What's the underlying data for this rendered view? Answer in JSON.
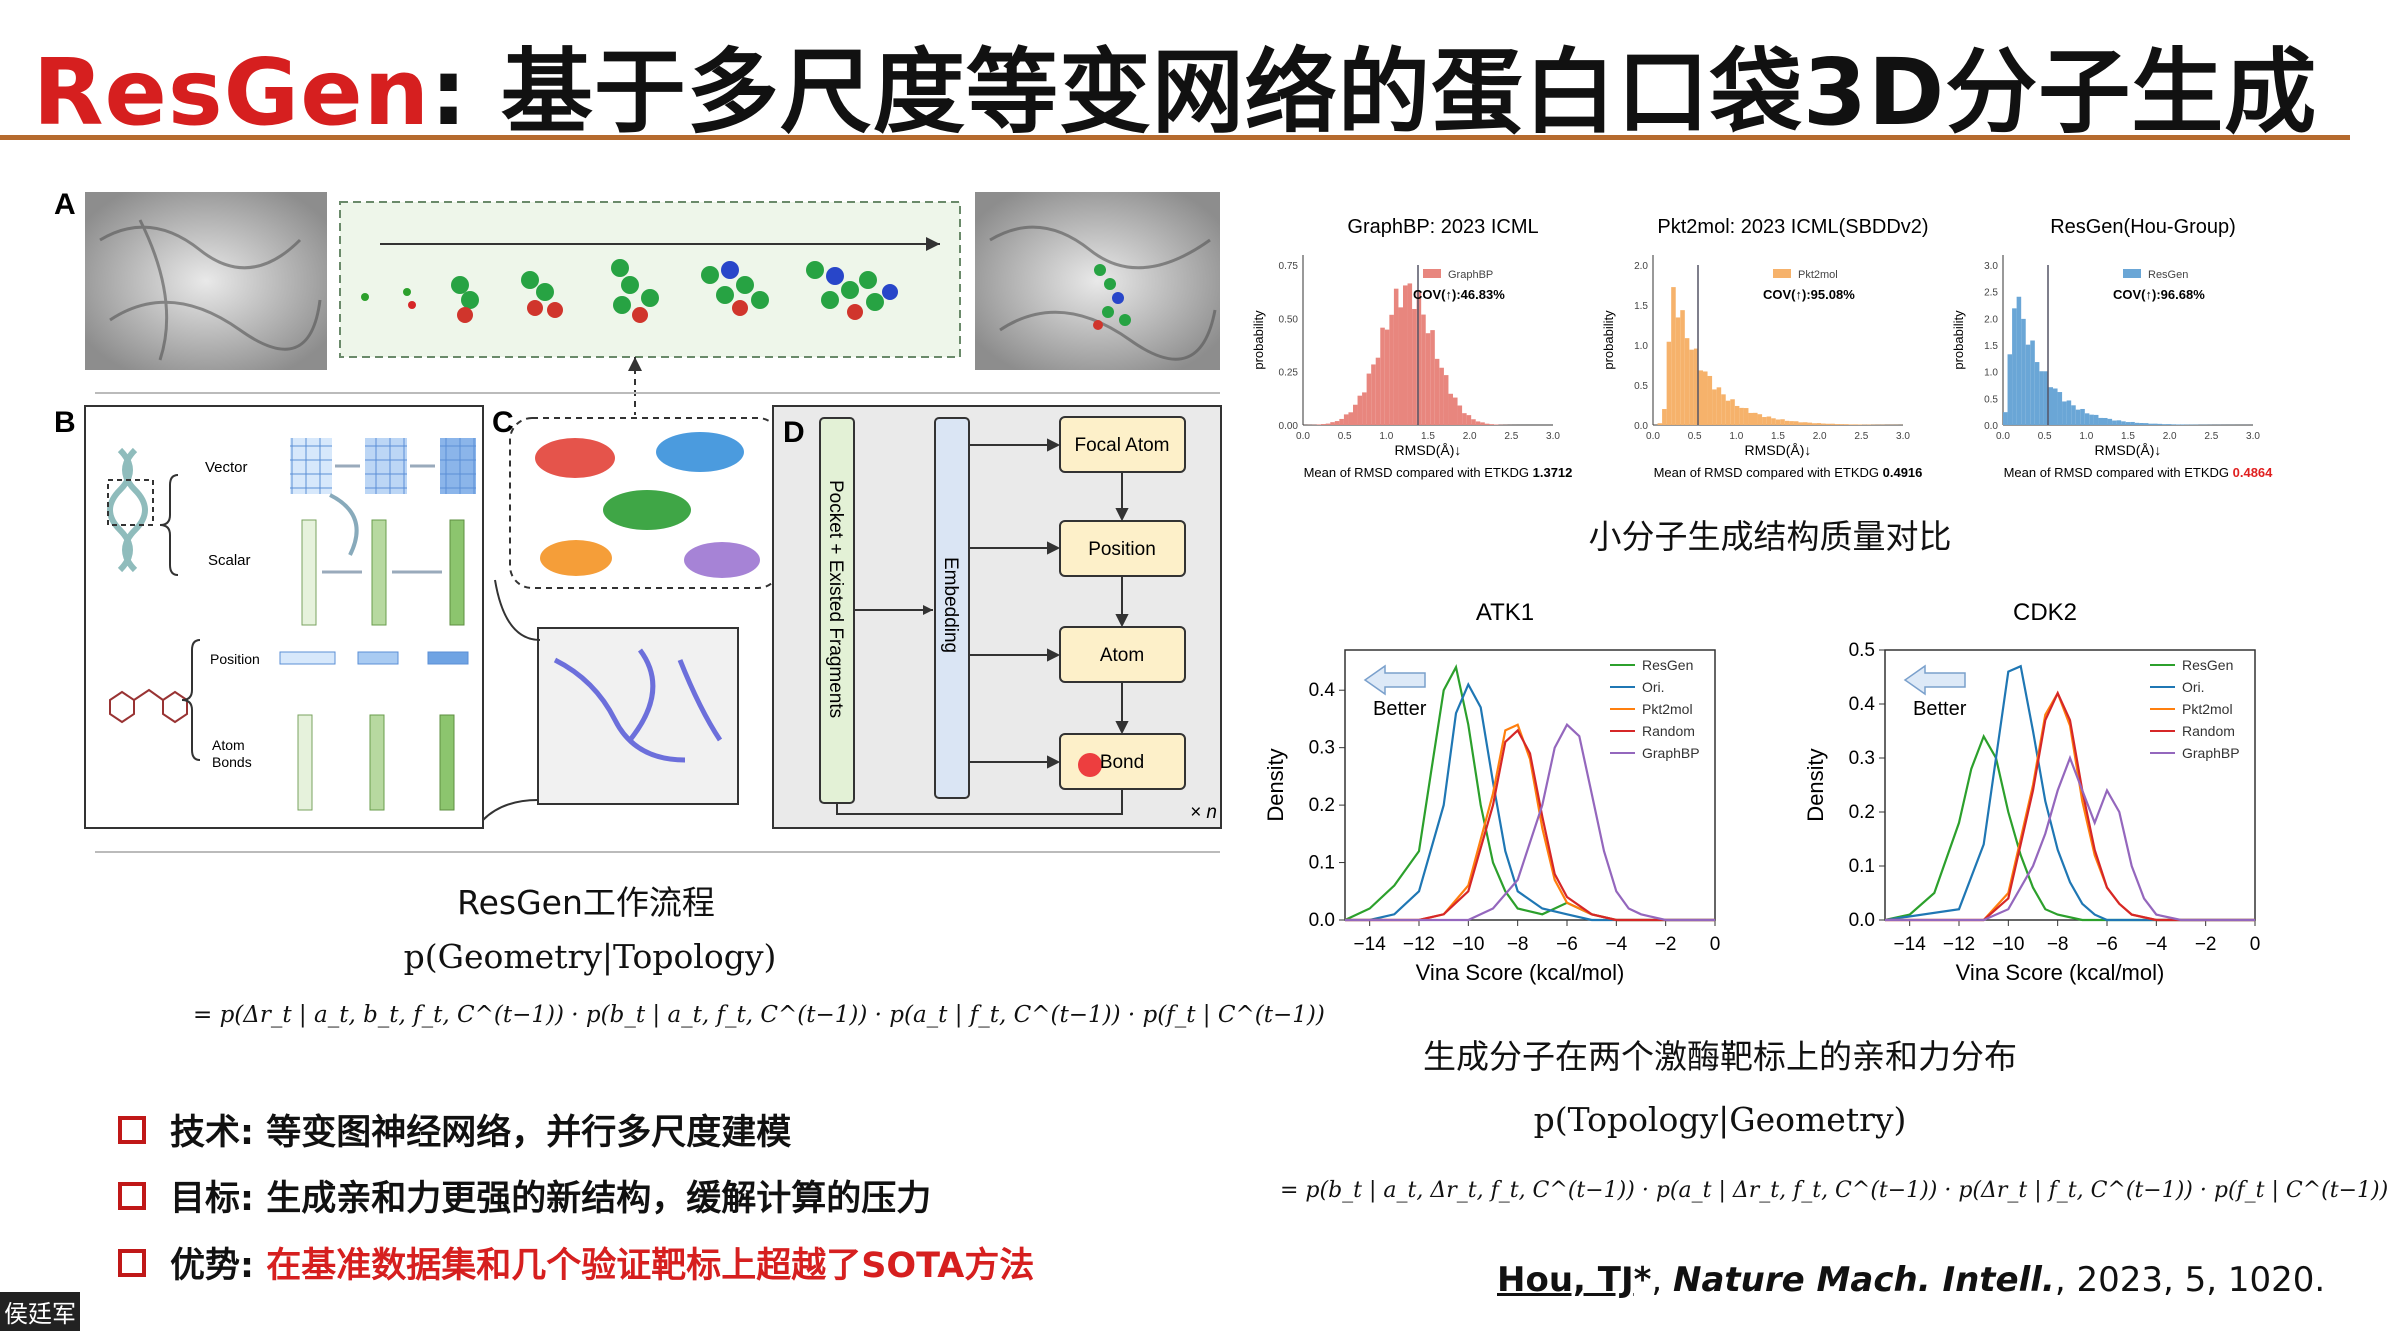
{
  "title": {
    "brand": "ResGen",
    "rest": ": 基于多尺度等变网络的蛋白口袋3D分子生成"
  },
  "figure": {
    "panel_labels": [
      "A",
      "B",
      "C",
      "D"
    ],
    "panel_b": {
      "vector": "Vector",
      "scalar": "Scalar",
      "position": "Position",
      "atom_bonds_1": "Atom",
      "atom_bonds_2": "Bonds"
    },
    "panel_d": {
      "pocket_label": "Pocket + Existed Fragments",
      "embedding_label": "Embedding",
      "steps": [
        "Focal Atom",
        "Position",
        "Atom",
        "Bond"
      ],
      "repeat": "× n"
    }
  },
  "left_caption": "ResGen工作流程",
  "formula_left": {
    "top": "p(Geometry|Topology)",
    "body": "= p(Δr_t | a_t, b_t, f_t, C^(t−1)) · p(b_t | a_t, f_t, C^(t−1)) · p(a_t | f_t, C^(t−1)) · p(f_t | C^(t−1))"
  },
  "bullets": [
    {
      "label": "技术:",
      "text": "等变图神经网络，并行多尺度建模",
      "highlight": false
    },
    {
      "label": "目标:",
      "text": "生成亲和力更强的新结构，缓解计算的压力",
      "highlight": false
    },
    {
      "label": "优势:",
      "text": "在基准数据集和几个验证靶标上超越了SOTA方法",
      "highlight": true
    }
  ],
  "watermark": "侯廷军",
  "rmsd_panels": [
    {
      "title": "GraphBP: 2023 ICML",
      "legend": "GraphBP",
      "cov": "COV(↑):46.83%",
      "xlabel": "RMSD(Å)↓",
      "ylabel": "probability",
      "yticks": [
        "0.00",
        "0.25",
        "0.50",
        "0.75"
      ],
      "note": "Mean of RMSD compared with ETKDG ",
      "mean": "1.3712",
      "mean_red": false,
      "color": "#e8867e"
    },
    {
      "title": "Pkt2mol: 2023 ICML(SBDDv2)",
      "legend": "Pkt2mol",
      "cov": "COV(↑):95.08%",
      "xlabel": "RMSD(Å)↓",
      "ylabel": "probability",
      "yticks": [
        "0.0",
        "0.5",
        "1.0",
        "1.5",
        "2.0"
      ],
      "note": "Mean of RMSD compared with ETKDG ",
      "mean": "0.4916",
      "mean_red": false,
      "color": "#f6b26b"
    },
    {
      "title": "ResGen(Hou-Group)",
      "legend": "ResGen",
      "cov": "COV(↑):96.68%",
      "xlabel": "RMSD(Å)↓",
      "ylabel": "probability",
      "yticks": [
        "0.0",
        "0.5",
        "1.0",
        "1.5",
        "2.0",
        "2.5",
        "3.0"
      ],
      "note": "Mean of RMSD compared with ETKDG ",
      "mean": "0.4864",
      "mean_red": true,
      "color": "#6aa6d6"
    }
  ],
  "rmsd_xticks": [
    "0.0",
    "0.5",
    "1.0",
    "1.5",
    "2.0",
    "2.5",
    "3.0"
  ],
  "rmsd_caption": "小分子生成结构质量对比",
  "chart_data": [
    {
      "type": "line",
      "title": "ATK1",
      "xlabel": "Vina Score (kcal/mol)",
      "ylabel": "Density",
      "xlim": [
        -15,
        0
      ],
      "ylim": [
        0,
        0.47
      ],
      "xticks": [
        -14,
        -12,
        -10,
        -8,
        -6,
        -4,
        -2,
        0
      ],
      "yticks": [
        0.0,
        0.1,
        0.2,
        0.3,
        0.4
      ],
      "legend_position": "top-right",
      "annotation": "Better",
      "series": [
        {
          "name": "ResGen",
          "color": "#2ca02c",
          "x": [
            -15,
            -14,
            -13,
            -12,
            -11.5,
            -11,
            -10.5,
            -10,
            -9.5,
            -9,
            -8.5,
            -8,
            -7,
            -6,
            -5,
            -4,
            -2,
            0
          ],
          "y": [
            0,
            0.02,
            0.06,
            0.12,
            0.26,
            0.4,
            0.44,
            0.34,
            0.2,
            0.1,
            0.05,
            0.02,
            0.01,
            0.03,
            0.01,
            0,
            0,
            0
          ]
        },
        {
          "name": "Ori.",
          "color": "#1f77b4",
          "x": [
            -15,
            -14,
            -13,
            -12,
            -11,
            -10.5,
            -10,
            -9.5,
            -9,
            -8.5,
            -8,
            -7,
            -6,
            -5,
            -4,
            -2,
            0
          ],
          "y": [
            0,
            0,
            0.01,
            0.05,
            0.2,
            0.36,
            0.41,
            0.37,
            0.24,
            0.12,
            0.05,
            0.02,
            0.01,
            0,
            0,
            0,
            0
          ]
        },
        {
          "name": "Pkt2mol",
          "color": "#ff7f0e",
          "x": [
            -15,
            -12,
            -11,
            -10,
            -9,
            -8.5,
            -8,
            -7.5,
            -7,
            -6.5,
            -6,
            -5,
            -4,
            -3,
            -2,
            0
          ],
          "y": [
            0,
            0,
            0.01,
            0.06,
            0.22,
            0.33,
            0.34,
            0.28,
            0.16,
            0.07,
            0.03,
            0.01,
            0,
            0,
            0,
            0
          ]
        },
        {
          "name": "Random",
          "color": "#d62728",
          "x": [
            -15,
            -12,
            -11,
            -10,
            -9,
            -8.5,
            -8,
            -7.5,
            -7,
            -6.5,
            -6,
            -5,
            -4,
            -3,
            -2,
            0
          ],
          "y": [
            0,
            0,
            0.01,
            0.05,
            0.2,
            0.31,
            0.33,
            0.29,
            0.18,
            0.08,
            0.04,
            0.01,
            0,
            0,
            0,
            0
          ]
        },
        {
          "name": "GraphBP",
          "color": "#9467bd",
          "x": [
            -15,
            -10,
            -9,
            -8,
            -7,
            -6.5,
            -6,
            -5.5,
            -5,
            -4.5,
            -4,
            -3.5,
            -3,
            -2,
            0
          ],
          "y": [
            0,
            0,
            0.02,
            0.07,
            0.2,
            0.3,
            0.34,
            0.32,
            0.22,
            0.12,
            0.05,
            0.02,
            0.01,
            0,
            0
          ]
        }
      ]
    },
    {
      "type": "line",
      "title": "CDK2",
      "xlabel": "Vina Score (kcal/mol)",
      "ylabel": "Density",
      "xlim": [
        -15,
        0
      ],
      "ylim": [
        0,
        0.5
      ],
      "xticks": [
        -14,
        -12,
        -10,
        -8,
        -6,
        -4,
        -2,
        0
      ],
      "yticks": [
        0.0,
        0.1,
        0.2,
        0.3,
        0.4,
        0.5
      ],
      "legend_position": "top-right",
      "annotation": "Better",
      "series": [
        {
          "name": "ResGen",
          "color": "#2ca02c",
          "x": [
            -15,
            -14,
            -13,
            -12,
            -11.5,
            -11,
            -10.5,
            -10,
            -9.5,
            -9,
            -8.5,
            -8,
            -7,
            -6,
            -5,
            -4,
            -2,
            0
          ],
          "y": [
            0,
            0.01,
            0.05,
            0.18,
            0.28,
            0.34,
            0.3,
            0.2,
            0.12,
            0.06,
            0.02,
            0.01,
            0,
            0,
            0,
            0,
            0,
            0
          ]
        },
        {
          "name": "Ori.",
          "color": "#1f77b4",
          "x": [
            -15,
            -12,
            -11,
            -10.5,
            -10,
            -9.5,
            -9,
            -8.5,
            -8,
            -7.5,
            -7,
            -6.5,
            -6,
            -5,
            -4,
            -2,
            0
          ],
          "y": [
            0,
            0.02,
            0.14,
            0.3,
            0.46,
            0.47,
            0.35,
            0.22,
            0.13,
            0.07,
            0.03,
            0.01,
            0,
            0,
            0,
            0,
            0
          ]
        },
        {
          "name": "Pkt2mol",
          "color": "#ff7f0e",
          "x": [
            -15,
            -11,
            -10,
            -9,
            -8.5,
            -8,
            -7.5,
            -7,
            -6.5,
            -6,
            -5.5,
            -5,
            -4,
            -2,
            0
          ],
          "y": [
            0,
            0,
            0.05,
            0.25,
            0.38,
            0.42,
            0.36,
            0.22,
            0.12,
            0.06,
            0.03,
            0.01,
            0,
            0,
            0
          ]
        },
        {
          "name": "Random",
          "color": "#d62728",
          "x": [
            -15,
            -11,
            -10,
            -9,
            -8.5,
            -8,
            -7.5,
            -7,
            -6.5,
            -6,
            -5.5,
            -5,
            -4,
            -2,
            0
          ],
          "y": [
            0,
            0,
            0.04,
            0.24,
            0.37,
            0.42,
            0.37,
            0.24,
            0.13,
            0.06,
            0.03,
            0.01,
            0,
            0,
            0
          ]
        },
        {
          "name": "GraphBP",
          "color": "#9467bd",
          "x": [
            -15,
            -11,
            -10,
            -9,
            -8.5,
            -8,
            -7.5,
            -7,
            -6.5,
            -6,
            -5.5,
            -5,
            -4.5,
            -4,
            -3,
            -2,
            0
          ],
          "y": [
            0,
            0,
            0.02,
            0.1,
            0.16,
            0.24,
            0.3,
            0.24,
            0.18,
            0.24,
            0.2,
            0.1,
            0.04,
            0.01,
            0,
            0,
            0
          ]
        }
      ]
    }
  ],
  "vina_caption": "生成分子在两个激酶靶标上的亲和力分布",
  "formula_right": {
    "top": "p(Topology|Geometry)",
    "body": "= p(b_t | a_t, Δr_t, f_t, C^(t−1)) · p(a_t | Δr_t, f_t, C^(t−1)) · p(Δr_t | f_t, C^(t−1)) · p(f_t | C^(t−1))"
  },
  "reference": {
    "author": "Hou, TJ",
    "star": "*",
    "journal": "Nature Mach. Intell.",
    "tail": ", 2023, 5, 1020."
  }
}
